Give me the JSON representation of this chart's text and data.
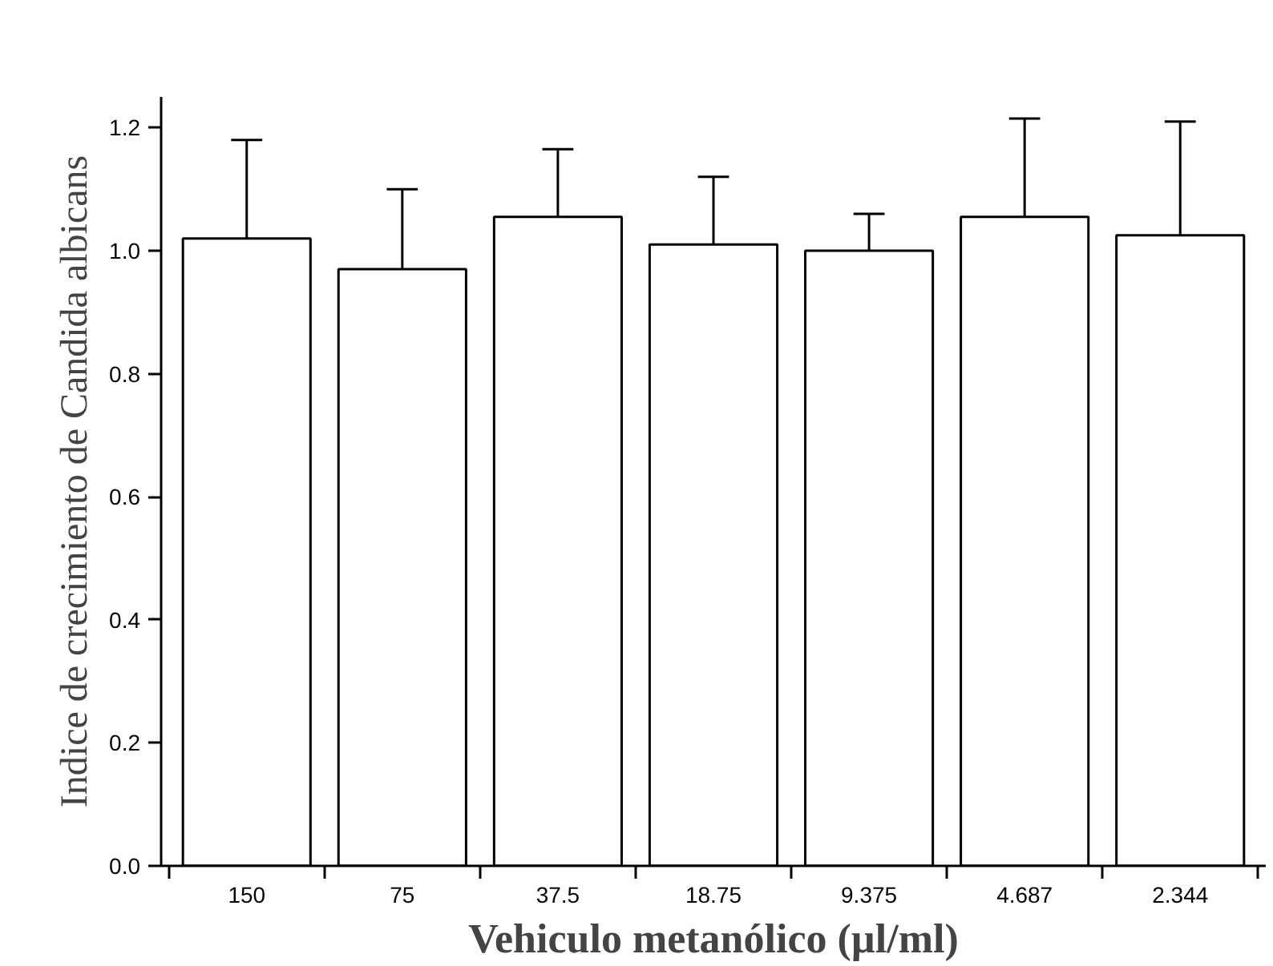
{
  "chart_data": {
    "type": "bar",
    "xlabel": "Vehiculo metanólico (µl/ml)",
    "ylabel": "Indice de crecimiento de Candida albicans",
    "categories": [
      "150",
      "75",
      "37.5",
      "18.75",
      "9.375",
      "4.687",
      "2.344"
    ],
    "values": [
      1.02,
      0.97,
      1.055,
      1.01,
      1.0,
      1.055,
      1.025
    ],
    "errors": [
      [
        1.02,
        1.18
      ],
      [
        0.97,
        1.1
      ],
      [
        1.055,
        1.165
      ],
      [
        1.01,
        1.12
      ],
      [
        1.0,
        1.06
      ],
      [
        1.055,
        1.215
      ],
      [
        1.025,
        1.21
      ]
    ],
    "color": "#ffffff",
    "ylim": [
      0,
      1.25
    ],
    "yticks": [
      {
        "value": 0,
        "label": "0.0"
      },
      {
        "value": 0.2,
        "label": "0.2"
      },
      {
        "value": 0.4,
        "label": "0.4"
      },
      {
        "value": 0.6,
        "label": "0.6"
      },
      {
        "value": 0.8,
        "label": "0.8"
      },
      {
        "value": 1.0,
        "label": "1.0"
      },
      {
        "value": 1.2,
        "label": "1.2"
      }
    ],
    "grid": false
  }
}
